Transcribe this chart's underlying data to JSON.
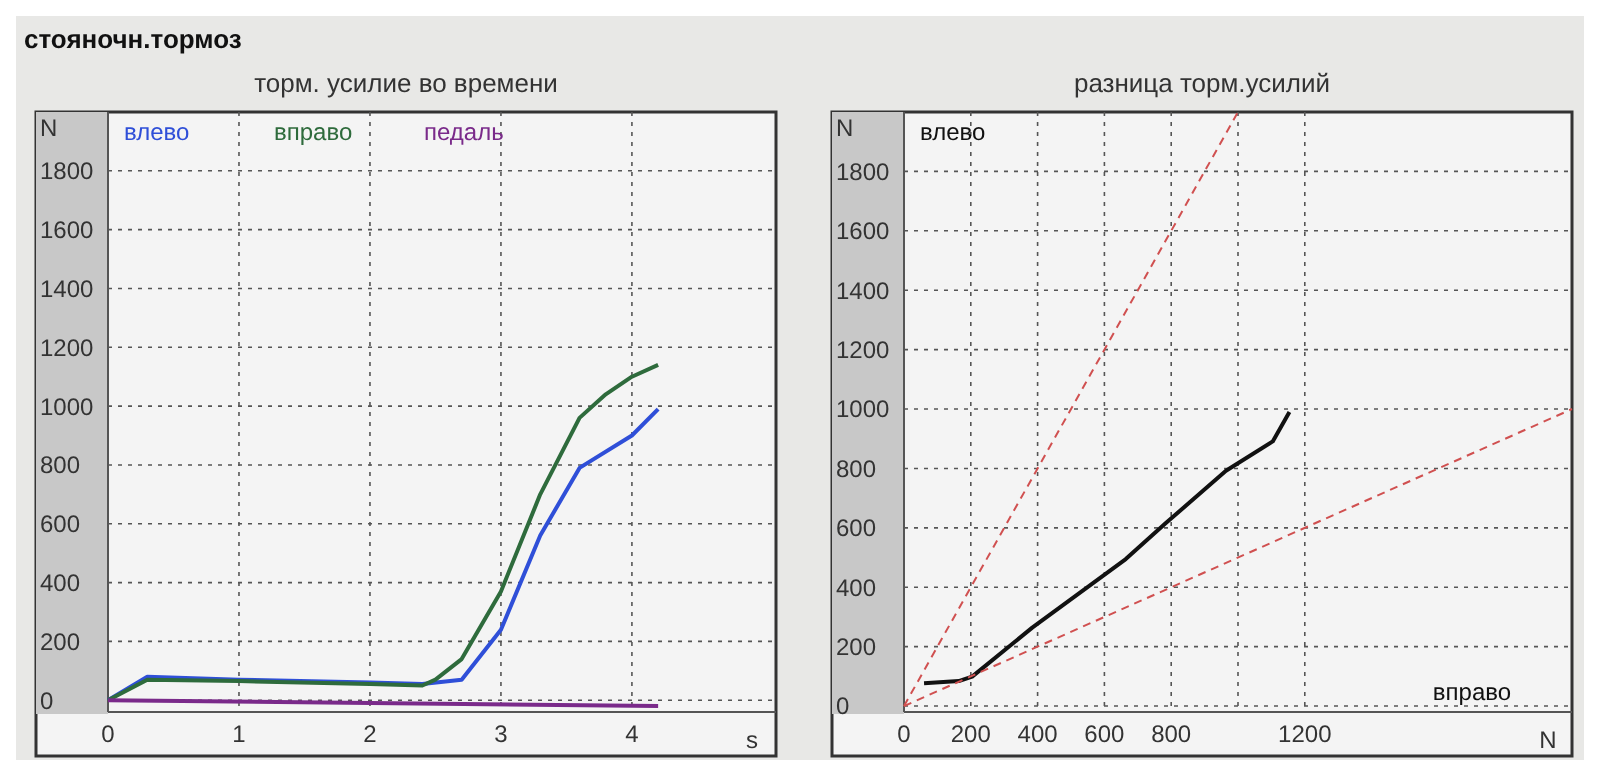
{
  "chart_data": [
    {
      "type": "line",
      "title": "торм. усилие во времени",
      "annotations": [
        "стояночн.тормоз"
      ],
      "xlabel": "s",
      "ylabel": "N",
      "xlim": [
        0,
        5.1
      ],
      "ylim": [
        -40,
        2000
      ],
      "xticks": [
        0,
        1,
        2,
        3,
        4
      ],
      "yticks": [
        0,
        200,
        400,
        600,
        800,
        1000,
        1200,
        1400,
        1600,
        1800
      ],
      "grid": true,
      "legend": "top",
      "line_style": "solid",
      "series": [
        {
          "name": "влево",
          "color": "#2f4fd8",
          "x": [
            0,
            0.3,
            1,
            2,
            2.4,
            2.7,
            3,
            3.3,
            3.6,
            4,
            4.2
          ],
          "values": [
            0,
            80,
            70,
            60,
            55,
            70,
            240,
            560,
            790,
            900,
            990
          ]
        },
        {
          "name": "вправо",
          "color": "#2e6b3c",
          "x": [
            0,
            0.3,
            1,
            2,
            2.4,
            2.5,
            2.7,
            3,
            3.3,
            3.6,
            3.8,
            4,
            4.2
          ],
          "values": [
            0,
            70,
            65,
            55,
            50,
            70,
            140,
            370,
            700,
            960,
            1040,
            1100,
            1140
          ]
        },
        {
          "name": "педаль",
          "color": "#7a2a8a",
          "x": [
            0,
            4.2
          ],
          "values": [
            0,
            -20
          ]
        }
      ]
    },
    {
      "type": "line",
      "title": "разница торм.усилий",
      "xlabel": "N",
      "ylabel": "N",
      "annotations": [
        "влево",
        "вправо"
      ],
      "xlim": [
        0,
        2000
      ],
      "ylim": [
        -20,
        2000
      ],
      "xticks": [
        0,
        200,
        400,
        600,
        800,
        {
          "value": 1000,
          "label": null
        },
        1200
      ],
      "yticks": [
        0,
        200,
        400,
        600,
        800,
        1000,
        1200,
        1400,
        1600,
        1800
      ],
      "grid": true,
      "series": [
        {
          "color": "#111111",
          "x": [
            60,
            164,
            204,
            384,
            664,
            784,
            964,
            1104,
            1154
          ],
          "values": [
            77,
            84,
            99,
            264,
            495,
            616,
            792,
            891,
            990
          ]
        },
        {
          "color": "#d05050",
          "line_style": "dashed",
          "x": [
            0,
            1000
          ],
          "values": [
            0,
            2000
          ]
        },
        {
          "color": "#d05050",
          "line_style": "dashed",
          "x": [
            0,
            2000
          ],
          "values": [
            0,
            1000
          ]
        }
      ]
    }
  ]
}
